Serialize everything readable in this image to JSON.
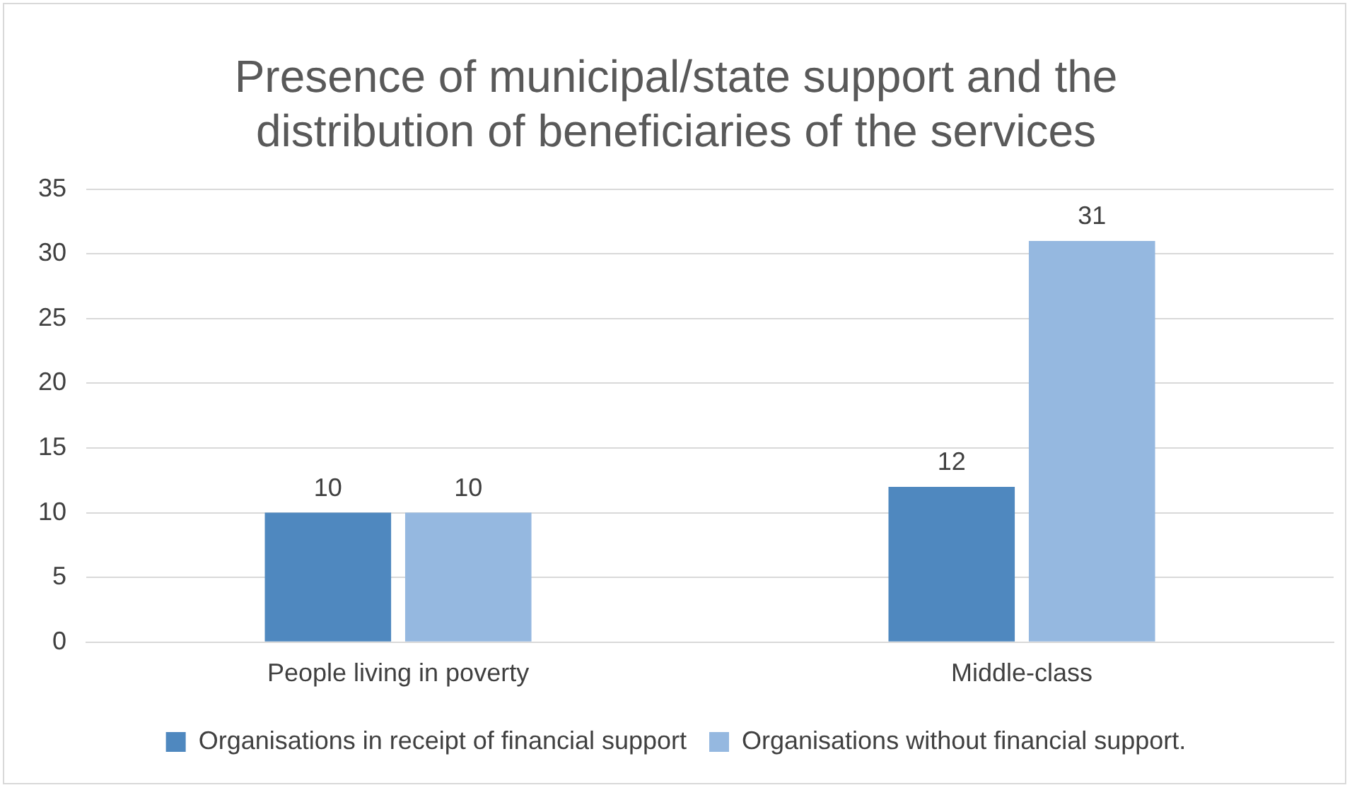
{
  "chart_data": {
    "type": "bar",
    "title": [
      "Presence of municipal/state support and the",
      "distribution of beneficiaries of the services"
    ],
    "categories": [
      "People living in poverty",
      "Middle-class"
    ],
    "series": [
      {
        "name": "Organisations in receipt of financial support",
        "color": "#4f88bf",
        "values": [
          10,
          12
        ]
      },
      {
        "name": "Organisations without financial support.",
        "color": "#95b8e0",
        "values": [
          10,
          31
        ]
      }
    ],
    "ylim": [
      0,
      35
    ],
    "yticks": [
      0,
      5,
      10,
      15,
      20,
      25,
      30,
      35
    ],
    "grid": "y",
    "legend": "bottom",
    "data_labels": true
  }
}
